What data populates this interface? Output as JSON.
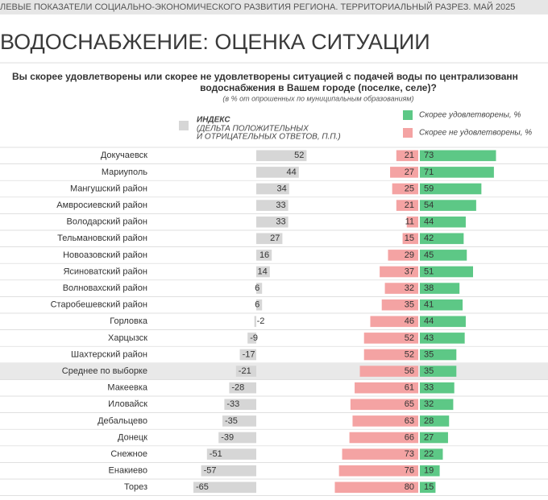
{
  "header": "ЛЕВЫЕ ПОКАЗАТЕЛИ СОЦИАЛЬНО-ЭКОНОМИЧЕСКОГО РАЗВИТИЯ РЕГИОНА. ТЕРРИТОРИАЛЬНЫЙ РАЗРЕЗ. МАЙ 2025",
  "title": "ВОДОСНАБЖЕНИЕ: ОЦЕНКА СИТУАЦИИ",
  "question": [
    "Вы скорее удовлетворены или скорее не удовлетворены ситуацией с подачей воды по централизованн",
    "водоснабжения в Вашем городе (поселке, селе)?"
  ],
  "note": "(в % от опрошенных по муниципальным образованиям)",
  "chart_data": [
    {
      "type": "bar",
      "orientation": "horizontal",
      "legend": [
        "ИНДЕКС",
        "(ДЕЛЬТА ПОЛОЖИТЕЛЬНЫХ",
        "И ОТРИЦАТЕЛЬНЫХ ОТВЕТОВ, П.П.)"
      ],
      "color": "#d6d6d6",
      "xlim": [
        -70,
        60
      ],
      "categories": [
        "Докучаевск",
        "Мариуполь",
        "Мангушский район",
        "Амвросиевский район",
        "Володарский район",
        "Тельмановский район",
        "Новоазовский район",
        "Ясиноватский район",
        "Волновахский район",
        "Старобешевский район",
        "Горловка",
        "Харцызск",
        "Шахтерский район",
        "Среднее по выборке",
        "Макеевка",
        "Иловайск",
        "Дебальцево",
        "Донецк",
        "Снежное",
        "Енакиево",
        "Торез"
      ],
      "highlight": "Среднее по выборке",
      "values": [
        52,
        44,
        34,
        33,
        33,
        27,
        16,
        14,
        6,
        6,
        -2,
        -9,
        -17,
        -21,
        -28,
        -33,
        -35,
        -39,
        -51,
        -57,
        -65
      ]
    },
    {
      "type": "diverging_bar",
      "xlim": [
        -85,
        85
      ],
      "series": [
        {
          "name": "Скорее удовлетворены, %",
          "color": "#5dc886",
          "side": "right",
          "values": [
            73,
            71,
            59,
            54,
            44,
            42,
            45,
            51,
            38,
            41,
            44,
            43,
            35,
            35,
            33,
            32,
            28,
            27,
            22,
            19,
            15
          ]
        },
        {
          "name": "Скорее не удовлетворены, %",
          "color": "#f4a3a3",
          "side": "left",
          "values": [
            21,
            27,
            25,
            21,
            11,
            15,
            29,
            37,
            32,
            35,
            46,
            52,
            52,
            56,
            61,
            65,
            63,
            66,
            73,
            76,
            80
          ]
        }
      ]
    }
  ]
}
